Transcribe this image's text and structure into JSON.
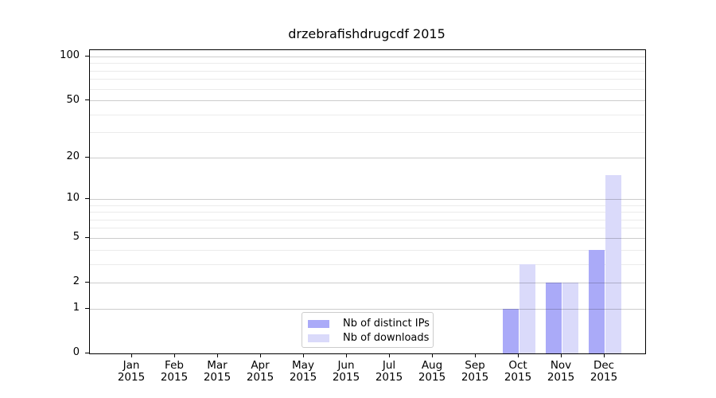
{
  "chart_data": {
    "type": "bar",
    "title": "drzebrafishdrugcdf 2015",
    "categories": [
      "Jan",
      "Feb",
      "Mar",
      "Apr",
      "May",
      "Jun",
      "Jul",
      "Aug",
      "Sep",
      "Oct",
      "Nov",
      "Dec"
    ],
    "x_year_label": "2015",
    "series": [
      {
        "name": "Nb of distinct IPs",
        "color": "#aaaaf8",
        "values": [
          0,
          0,
          0,
          0,
          0,
          0,
          0,
          0,
          0,
          1,
          2,
          4
        ]
      },
      {
        "name": "Nb of downloads",
        "color": "#dadafa",
        "values": [
          0,
          0,
          0,
          0,
          0,
          0,
          0,
          0,
          0,
          3,
          2,
          15
        ]
      }
    ],
    "yscale": "log1p",
    "ylim": [
      0,
      111
    ],
    "y_ticks": [
      0,
      1,
      2,
      5,
      10,
      20,
      50,
      100
    ],
    "y_minor_ticks": [
      3,
      4,
      6,
      7,
      8,
      9,
      30,
      40,
      60,
      70,
      80,
      90
    ],
    "grid": true,
    "grid_above_bars": true,
    "legend_position": "lower center",
    "legend_labels": [
      "Nb of distinct IPs",
      "Nb of downloads"
    ]
  }
}
